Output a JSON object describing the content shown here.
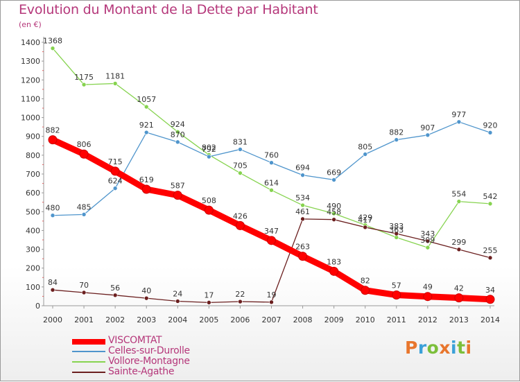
{
  "header": {
    "title": "Evolution du Montant de la Dette par Habitant",
    "unit": "(en €)"
  },
  "logo": {
    "letters": [
      "P",
      "r",
      "o",
      "x",
      "i",
      "t",
      "i"
    ],
    "colors": [
      "#e8762d",
      "#3aa0d8",
      "#7cbf3b",
      "#e8762d",
      "#3aa0d8",
      "#7cbf3b",
      "#e8762d"
    ]
  },
  "chart_data": {
    "type": "line",
    "title": "Evolution du Montant de la Dette par Habitant",
    "ylabel": "(en €)",
    "xlabel": "",
    "x": [
      "2000",
      "2001",
      "2002",
      "2003",
      "2004",
      "2005",
      "2006",
      "2007",
      "2008",
      "2009",
      "2010",
      "2011",
      "2012",
      "2013",
      "2014"
    ],
    "ylim": [
      0,
      1400
    ],
    "yticks": [
      0,
      100,
      200,
      300,
      400,
      500,
      600,
      700,
      800,
      900,
      1000,
      1100,
      1200,
      1300,
      1400
    ],
    "grid": false,
    "legend_position": "bottom-left",
    "series": [
      {
        "name": "VISCOMTAT",
        "color": "#ff0000",
        "emphasis": true,
        "values": [
          882,
          806,
          715,
          619,
          587,
          508,
          426,
          347,
          263,
          183,
          82,
          57,
          49,
          42,
          34
        ]
      },
      {
        "name": "Celles-sur-Durolle",
        "color": "#4f95cc",
        "values": [
          480,
          485,
          624,
          921,
          870,
          792,
          831,
          760,
          694,
          669,
          805,
          882,
          907,
          977,
          920
        ]
      },
      {
        "name": "Vollore-Montagne",
        "color": "#86d34f",
        "values": [
          1368,
          1175,
          1181,
          1057,
          924,
          802,
          705,
          614,
          534,
          490,
          429,
          363,
          309,
          554,
          542
        ]
      },
      {
        "name": "Sainte-Agathe",
        "color": "#6b1f1f",
        "values": [
          84,
          70,
          56,
          40,
          24,
          17,
          22,
          19,
          461,
          458,
          417,
          383,
          343,
          299,
          255
        ]
      }
    ]
  }
}
